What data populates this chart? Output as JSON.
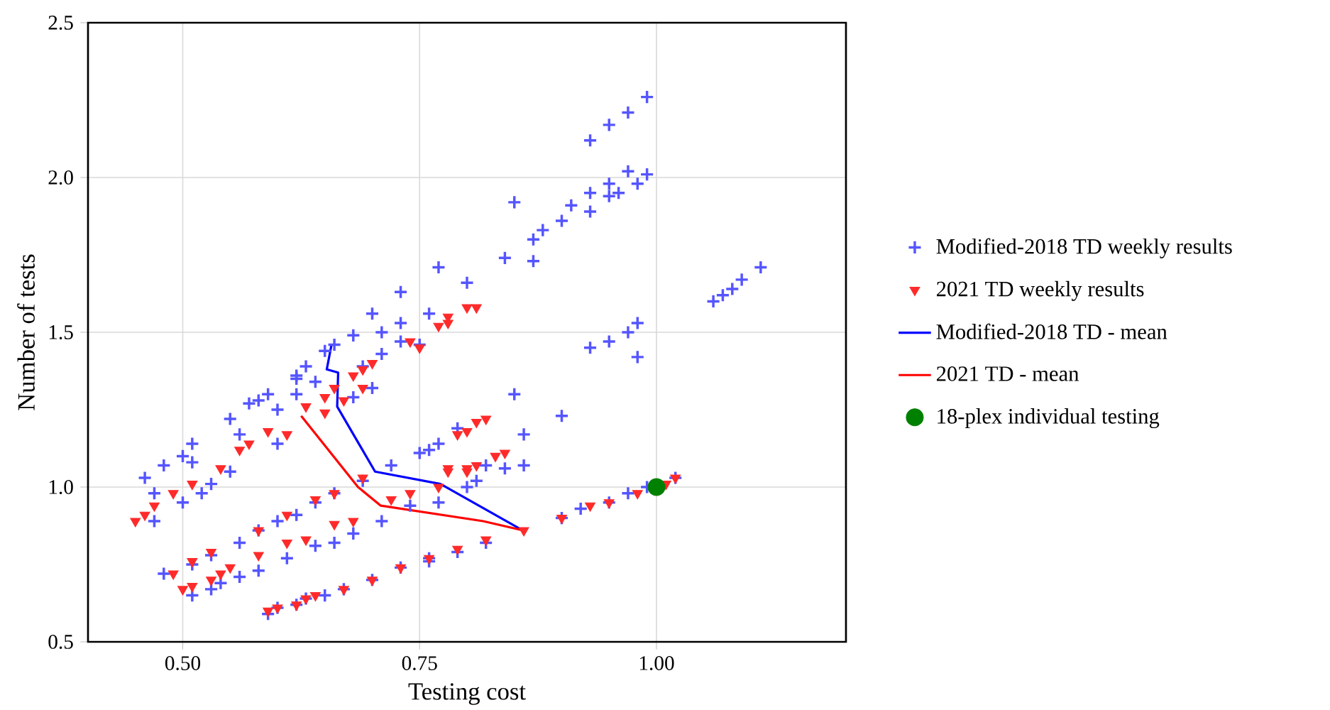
{
  "chart_data": {
    "type": "scatter",
    "xlabel": "Testing cost",
    "ylabel": "Number of tests",
    "xlim": [
      0.4,
      1.2
    ],
    "ylim": [
      0.5,
      2.5
    ],
    "xticks": [
      {
        "value": 0.5,
        "label": "0.50"
      },
      {
        "value": 0.75,
        "label": "0.75"
      },
      {
        "value": 1.0,
        "label": "1.00"
      }
    ],
    "yticks": [
      {
        "value": 0.5,
        "label": "0.5"
      },
      {
        "value": 1.0,
        "label": "1.0"
      },
      {
        "value": 1.5,
        "label": "1.5"
      },
      {
        "value": 2.0,
        "label": "2.0"
      },
      {
        "value": 2.5,
        "label": "2.5"
      }
    ],
    "grid": true,
    "legend": "right",
    "series": [
      {
        "name": "Modified-2018 TD weekly results",
        "marker": "cross",
        "color": "#5555ff",
        "x": [
          0.99,
          0.97,
          0.95,
          0.93,
          0.97,
          0.99,
          0.95,
          0.98,
          0.96,
          0.93,
          0.95,
          0.93,
          0.91,
          0.9,
          0.88,
          0.87,
          0.85,
          0.84,
          0.87,
          0.8,
          0.77,
          1.06,
          1.07,
          1.08,
          1.09,
          1.11,
          0.98,
          0.97,
          0.95,
          0.93,
          0.98,
          0.73,
          0.76,
          0.73,
          0.73,
          0.75,
          0.7,
          0.68,
          0.66,
          0.65,
          0.71,
          0.71,
          0.69,
          0.7,
          0.63,
          0.62,
          0.59,
          0.57,
          0.55,
          0.62,
          0.6,
          0.64,
          0.68,
          0.51,
          0.5,
          0.48,
          0.46,
          0.47,
          0.47,
          0.5,
          0.51,
          0.53,
          0.52,
          0.55,
          0.56,
          0.58,
          0.6,
          0.62,
          0.48,
          0.51,
          0.53,
          0.56,
          0.58,
          0.6,
          0.62,
          0.64,
          0.66,
          0.69,
          0.51,
          0.53,
          0.54,
          0.56,
          0.58,
          0.61,
          0.64,
          0.66,
          0.68,
          0.71,
          0.74,
          0.77,
          0.59,
          0.6,
          0.62,
          0.63,
          0.65,
          0.67,
          0.7,
          0.73,
          0.76,
          0.79,
          0.72,
          0.75,
          0.77,
          0.79,
          0.76,
          0.82,
          0.84,
          0.86,
          0.8,
          0.81,
          0.85,
          0.9,
          0.86,
          0.9,
          0.92,
          0.95,
          0.97,
          0.99,
          1.02,
          0.82,
          0.76
        ],
        "values": [
          2.26,
          2.21,
          2.17,
          2.12,
          2.02,
          2.01,
          1.98,
          1.98,
          1.95,
          1.95,
          1.94,
          1.89,
          1.91,
          1.86,
          1.83,
          1.8,
          1.92,
          1.74,
          1.73,
          1.66,
          1.71,
          1.6,
          1.62,
          1.64,
          1.67,
          1.71,
          1.53,
          1.5,
          1.47,
          1.45,
          1.42,
          1.63,
          1.56,
          1.53,
          1.47,
          1.46,
          1.56,
          1.49,
          1.46,
          1.44,
          1.5,
          1.43,
          1.39,
          1.32,
          1.39,
          1.35,
          1.3,
          1.27,
          1.22,
          1.3,
          1.25,
          1.34,
          1.29,
          1.14,
          1.1,
          1.07,
          1.03,
          0.98,
          0.89,
          0.95,
          1.08,
          1.01,
          0.98,
          1.05,
          1.17,
          1.28,
          1.14,
          1.36,
          0.72,
          0.75,
          0.78,
          0.82,
          0.86,
          0.89,
          0.91,
          0.95,
          0.98,
          1.02,
          0.65,
          0.67,
          0.69,
          0.71,
          0.73,
          0.77,
          0.81,
          0.82,
          0.85,
          0.89,
          0.94,
          0.95,
          0.59,
          0.61,
          0.62,
          0.64,
          0.65,
          0.67,
          0.7,
          0.74,
          0.77,
          0.79,
          1.07,
          1.11,
          1.14,
          1.19,
          1.12,
          1.07,
          1.06,
          1.07,
          1.0,
          1.02,
          1.3,
          1.23,
          1.17,
          0.9,
          0.93,
          0.95,
          0.98,
          1.0,
          1.03,
          0.82,
          0.76
        ]
      },
      {
        "name": "2021 TD weekly results",
        "marker": "triangle",
        "color": "#ff2a2a",
        "x": [
          0.45,
          0.46,
          0.47,
          0.49,
          0.51,
          0.54,
          0.56,
          0.57,
          0.59,
          0.61,
          0.63,
          0.65,
          0.66,
          0.68,
          0.69,
          0.7,
          0.74,
          0.75,
          0.65,
          0.67,
          0.69,
          0.77,
          0.78,
          0.78,
          0.8,
          0.81,
          0.49,
          0.51,
          0.53,
          0.58,
          0.61,
          0.64,
          0.66,
          0.69,
          0.5,
          0.51,
          0.53,
          0.54,
          0.55,
          0.58,
          0.61,
          0.63,
          0.66,
          0.68,
          0.72,
          0.74,
          0.77,
          0.78,
          0.8,
          0.59,
          0.6,
          0.62,
          0.63,
          0.64,
          0.67,
          0.7,
          0.73,
          0.76,
          0.79,
          0.82,
          0.81,
          0.8,
          0.79,
          0.78,
          0.8,
          0.81,
          0.83,
          0.84,
          0.86,
          0.82,
          0.9,
          0.93,
          0.95,
          0.98,
          1.01,
          1.02
        ],
        "values": [
          0.89,
          0.91,
          0.94,
          0.98,
          1.01,
          1.06,
          1.12,
          1.14,
          1.18,
          1.17,
          1.26,
          1.29,
          1.32,
          1.36,
          1.38,
          1.4,
          1.47,
          1.45,
          1.24,
          1.28,
          1.32,
          1.52,
          1.53,
          1.55,
          1.58,
          1.58,
          0.72,
          0.76,
          0.79,
          0.86,
          0.91,
          0.96,
          0.98,
          1.03,
          0.67,
          0.68,
          0.7,
          0.72,
          0.74,
          0.78,
          0.82,
          0.83,
          0.88,
          0.89,
          0.96,
          0.98,
          1.0,
          1.06,
          1.06,
          0.6,
          0.61,
          0.62,
          0.64,
          0.65,
          0.67,
          0.7,
          0.74,
          0.77,
          0.8,
          1.22,
          1.21,
          1.18,
          1.17,
          1.05,
          1.05,
          1.07,
          1.1,
          1.11,
          0.86,
          0.83,
          0.9,
          0.94,
          0.95,
          0.98,
          1.01,
          1.03
        ]
      },
      {
        "name": "Modified-2018 TD - mean",
        "type": "line",
        "marker": "none",
        "color": "#0000ff",
        "x": [
          0.657,
          0.652,
          0.664,
          0.663,
          0.703,
          0.772,
          0.859
        ],
        "values": [
          1.46,
          1.38,
          1.37,
          1.26,
          1.05,
          1.01,
          0.86
        ]
      },
      {
        "name": "2021 TD - mean",
        "type": "line",
        "marker": "none",
        "color": "#ff0000",
        "x": [
          0.625,
          0.685,
          0.709,
          0.817,
          0.859
        ],
        "values": [
          1.23,
          1.0,
          0.94,
          0.89,
          0.86
        ]
      },
      {
        "name": "18-plex individual testing",
        "marker": "circle",
        "color": "#008000",
        "x": [
          1.0
        ],
        "values": [
          1.0
        ]
      }
    ]
  }
}
